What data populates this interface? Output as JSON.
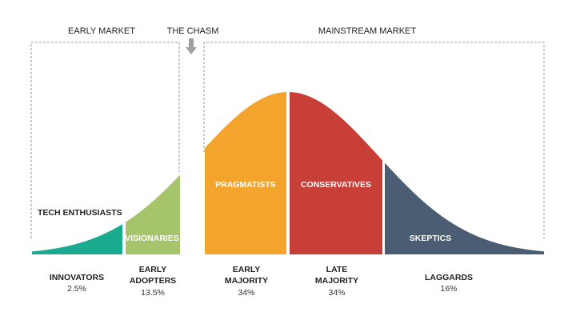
{
  "headers": {
    "early_market": "EARLY MARKET",
    "chasm": "THE CHASM",
    "mainstream_market": "MAINSTREAM MARKET"
  },
  "segments": [
    {
      "inner": "TECH ENTHUSIASTS",
      "name": [
        "INNOVATORS"
      ],
      "pct": "2.5%",
      "color": "#1aaa8f"
    },
    {
      "inner": "VISIONARIES",
      "name": [
        "EARLY",
        "ADOPTERS"
      ],
      "pct": "13.5%",
      "color": "#a6c46a"
    },
    {
      "inner": "PRAGMATISTS",
      "name": [
        "EARLY",
        "MAJORITY"
      ],
      "pct": "34%",
      "color": "#f3a42d"
    },
    {
      "inner": "CONSERVATIVES",
      "name": [
        "LATE",
        "MAJORITY"
      ],
      "pct": "34%",
      "color": "#c73f37"
    },
    {
      "inner": "SKEPTICS",
      "name": [
        "LAGGARDS"
      ],
      "pct": "16%",
      "color": "#4a5d72"
    }
  ],
  "icons": {
    "chasm_arrow": "arrow-down-icon"
  }
}
